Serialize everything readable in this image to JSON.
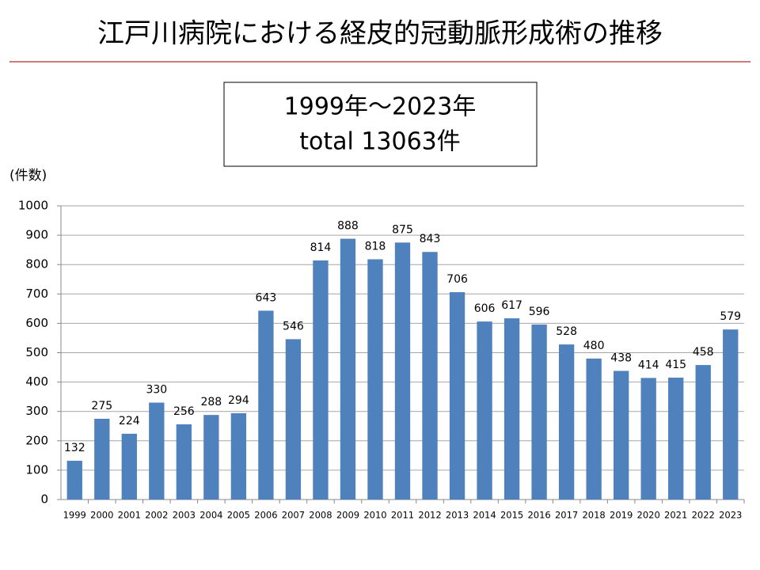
{
  "chart_data": {
    "type": "bar",
    "title": "江戸川病院における経皮的冠動脈形成術の推移",
    "annotations": [
      "1999年～2023年",
      "total 13063件"
    ],
    "y_label": "(件数)",
    "categories": [
      "1999",
      "2000",
      "2001",
      "2002",
      "2003",
      "2004",
      "2005",
      "2006",
      "2007",
      "2008",
      "2009",
      "2010",
      "2011",
      "2012",
      "2013",
      "2014",
      "2015",
      "2016",
      "2017",
      "2018",
      "2019",
      "2020",
      "2021",
      "2022",
      "2023"
    ],
    "values": [
      132,
      275,
      224,
      330,
      256,
      288,
      294,
      643,
      546,
      814,
      888,
      818,
      875,
      843,
      706,
      606,
      617,
      596,
      528,
      480,
      438,
      414,
      415,
      458,
      579
    ],
    "color": "#4f81bd",
    "ylim": [
      0,
      1000
    ],
    "yticks": [
      0,
      100,
      200,
      300,
      400,
      500,
      600,
      700,
      800,
      900,
      1000
    ],
    "grid": true
  }
}
